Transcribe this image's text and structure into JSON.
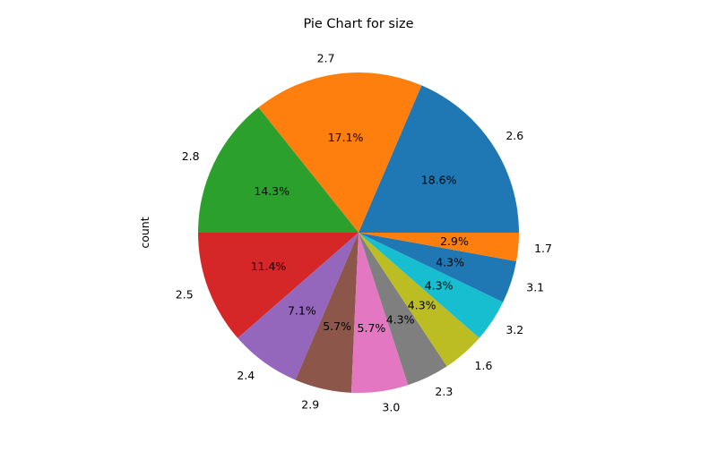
{
  "chart_data": {
    "type": "pie",
    "title": "Pie Chart for size",
    "ylabel": "count",
    "start_angle_deg": 0,
    "direction": "counterclockwise",
    "categories": [
      "2.6",
      "2.7",
      "2.8",
      "2.5",
      "2.4",
      "2.9",
      "3.0",
      "2.3",
      "1.6",
      "3.2",
      "3.1",
      "1.7"
    ],
    "values": [
      13,
      12,
      10,
      8,
      5,
      4,
      4,
      3,
      3,
      3,
      3,
      2
    ],
    "percent_labels": [
      "18.6%",
      "17.1%",
      "14.3%",
      "11.4%",
      "7.1%",
      "5.7%",
      "5.7%",
      "4.3%",
      "4.3%",
      "4.3%",
      "4.3%",
      "2.9%"
    ],
    "colors": [
      "#1f77b4",
      "#ff7f0e",
      "#2ca02c",
      "#d62728",
      "#9467bd",
      "#8c564b",
      "#e377c2",
      "#7f7f7f",
      "#bcbd22",
      "#17becf",
      "#1f77b4",
      "#ff7f0e"
    ],
    "legend": "none"
  }
}
